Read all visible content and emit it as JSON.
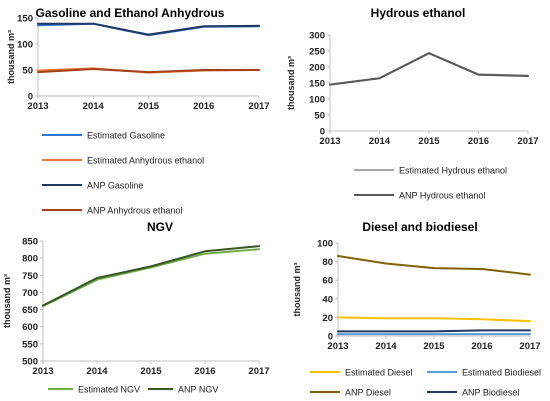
{
  "chart_data": [
    {
      "type": "line",
      "title": "Gasoline and Ethanol Anhydrous",
      "ylabel": "thousand m³",
      "x": [
        "2013",
        "2014",
        "2015",
        "2016",
        "2017"
      ],
      "ylim": [
        0,
        150
      ],
      "yticks": [
        0,
        50,
        100,
        150
      ],
      "series": [
        {
          "name": "Estimated Gasoline",
          "color": "#2e75d6",
          "values": [
            136,
            139,
            117,
            133,
            134
          ]
        },
        {
          "name": "Estimated Anhydrous ethanol",
          "color": "#ed7d31",
          "values": [
            49,
            53,
            45,
            49,
            50
          ]
        },
        {
          "name": "ANP Gasoline",
          "color": "#1f3864",
          "values": [
            139,
            139,
            118,
            134,
            135
          ]
        },
        {
          "name": "ANP Anhydrous ethanol",
          "color": "#a5401a",
          "values": [
            46,
            52,
            46,
            50,
            50
          ]
        }
      ],
      "legend_position": "bottom"
    },
    {
      "type": "line",
      "title": "Hydrous ethanol",
      "ylabel": "thousand m³",
      "x": [
        "2013",
        "2014",
        "2015",
        "2016",
        "2017"
      ],
      "ylim": [
        0,
        300
      ],
      "yticks": [
        0,
        50,
        100,
        150,
        200,
        250,
        300
      ],
      "series": [
        {
          "name": "Estimated Hydrous ethanol",
          "color": "#a6a6a6",
          "values": [
            145,
            165,
            243,
            177,
            173
          ]
        },
        {
          "name": "ANP Hydrous ethanol",
          "color": "#595959",
          "values": [
            145,
            165,
            243,
            176,
            172
          ]
        }
      ],
      "legend_position": "bottom"
    },
    {
      "type": "line",
      "title": "NGV",
      "ylabel": "thousand m³",
      "x": [
        "2013",
        "2014",
        "2015",
        "2016",
        "2017"
      ],
      "ylim": [
        500,
        850
      ],
      "yticks": [
        500,
        550,
        600,
        650,
        700,
        750,
        800,
        850
      ],
      "series": [
        {
          "name": "Estimated NGV",
          "color": "#70ad47",
          "values": [
            660,
            737,
            773,
            813,
            826
          ]
        },
        {
          "name": "ANP NGV",
          "color": "#375623",
          "values": [
            662,
            742,
            776,
            820,
            835
          ]
        }
      ],
      "legend_position": "bottom"
    },
    {
      "type": "line",
      "title": "Diesel and biodiesel",
      "ylabel": "thousand m³",
      "x": [
        "2013",
        "2014",
        "2015",
        "2016",
        "2017"
      ],
      "ylim": [
        0,
        100
      ],
      "yticks": [
        0,
        20,
        40,
        60,
        80,
        100
      ],
      "series": [
        {
          "name": "Estimated Diesel",
          "color": "#ffc000",
          "values": [
            20,
            19,
            19,
            18,
            16
          ]
        },
        {
          "name": "Estimated Biodiesel",
          "color": "#5b9bd5",
          "values": [
            2,
            2,
            2,
            2,
            2
          ]
        },
        {
          "name": "ANP Diesel",
          "color": "#806000",
          "values": [
            86,
            78,
            73,
            72,
            66
          ]
        },
        {
          "name": "ANP Biodiesel",
          "color": "#1f3864",
          "values": [
            5,
            5,
            5,
            6,
            6
          ]
        }
      ],
      "legend_position": "bottom"
    }
  ]
}
